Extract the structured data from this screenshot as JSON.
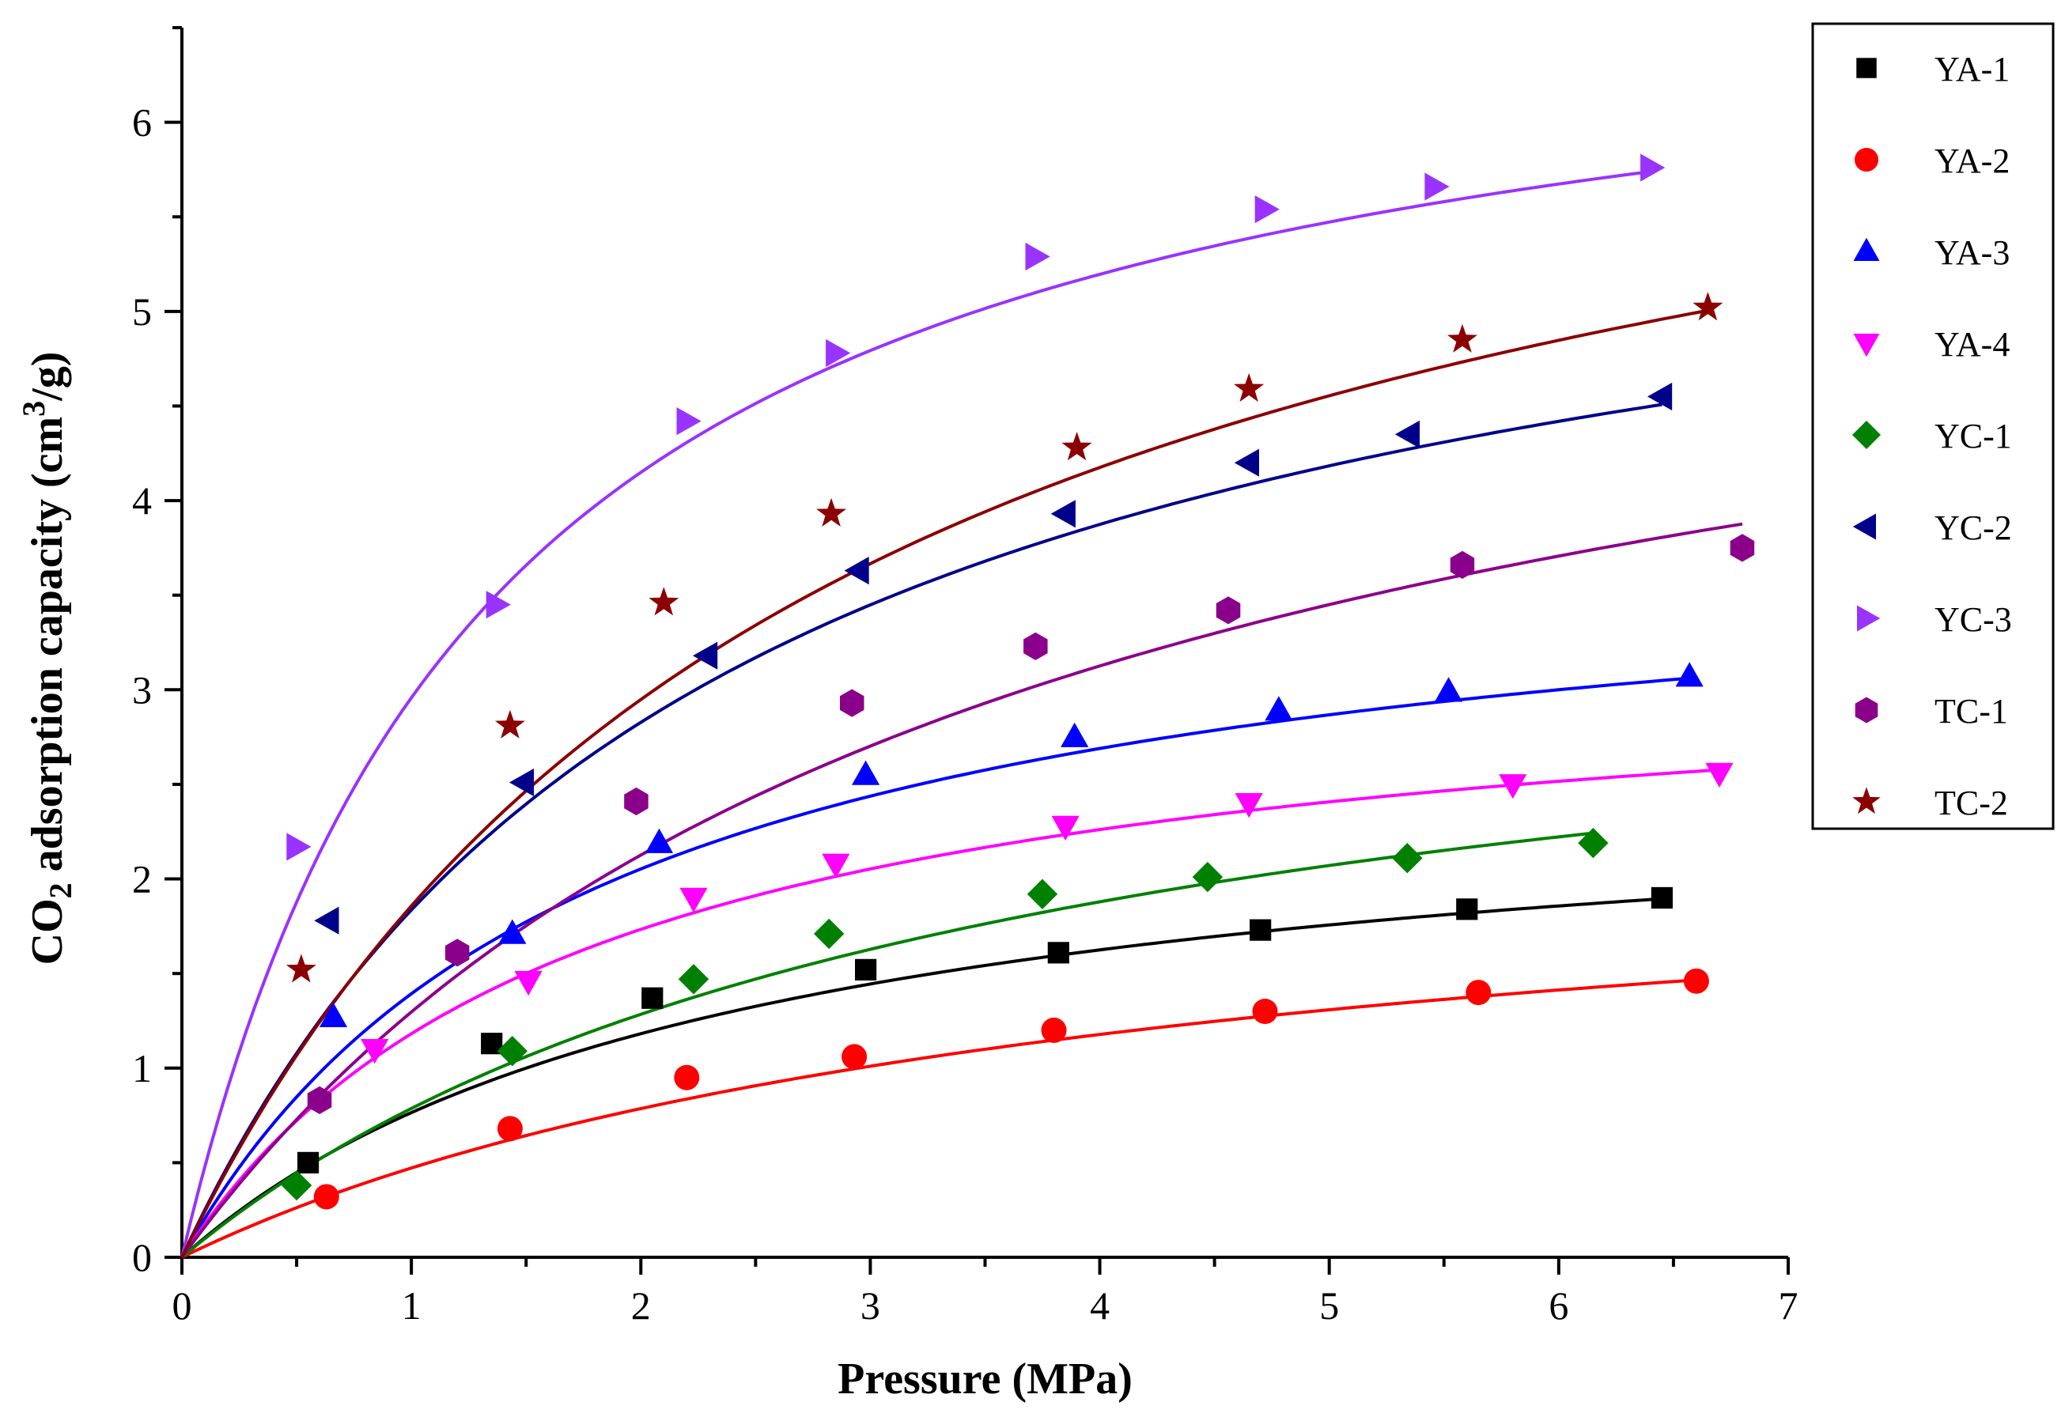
{
  "chart_data": {
    "type": "scatter",
    "title": "",
    "xlabel": "Pressure (MPa)",
    "ylabel": {
      "prefix": "CO",
      "sub": "2",
      "mid": " adsorption capacity (cm",
      "sup": "3",
      "suffix": "/g)"
    },
    "xlim": [
      0,
      7
    ],
    "ylim": [
      0,
      6.5
    ],
    "x_ticks": [
      0,
      1,
      2,
      3,
      4,
      5,
      6,
      7
    ],
    "y_ticks": [
      0,
      1,
      2,
      3,
      4,
      5,
      6
    ],
    "grid": false,
    "legend_position": "top-right, outside plot",
    "fit_model": "langmuir",
    "series": [
      {
        "name": "YA-1",
        "marker": "square",
        "color": "#000000",
        "fit": {
          "vl": 2.6,
          "pl": 2.4,
          "xmax": 6.45
        },
        "points": [
          [
            0.55,
            0.5
          ],
          [
            1.35,
            1.13
          ],
          [
            2.05,
            1.37
          ],
          [
            2.98,
            1.52
          ],
          [
            3.82,
            1.61
          ],
          [
            4.7,
            1.73
          ],
          [
            5.6,
            1.84
          ],
          [
            6.45,
            1.9
          ]
        ]
      },
      {
        "name": "YA-2",
        "marker": "circle",
        "color": "#ff0000",
        "fit": {
          "vl": 2.35,
          "pl": 3.98,
          "xmax": 6.6
        },
        "points": [
          [
            0.63,
            0.32
          ],
          [
            1.43,
            0.68
          ],
          [
            2.2,
            0.95
          ],
          [
            2.93,
            1.06
          ],
          [
            3.8,
            1.2
          ],
          [
            4.72,
            1.3
          ],
          [
            5.65,
            1.4
          ],
          [
            6.6,
            1.46
          ]
        ]
      },
      {
        "name": "YA-3",
        "marker": "triangle-up",
        "color": "#0000ff",
        "fit": {
          "vl": 3.9,
          "pl": 1.8,
          "xmax": 6.57
        },
        "points": [
          [
            0.66,
            1.27
          ],
          [
            1.44,
            1.71
          ],
          [
            2.08,
            2.19
          ],
          [
            2.98,
            2.55
          ],
          [
            3.89,
            2.75
          ],
          [
            4.78,
            2.89
          ],
          [
            5.52,
            2.99
          ],
          [
            6.57,
            3.07
          ]
        ]
      },
      {
        "name": "YA-4",
        "marker": "triangle-down",
        "color": "#ff00ff",
        "fit": {
          "vl": 3.25,
          "pl": 1.75,
          "xmax": 6.7
        },
        "points": [
          [
            0.84,
            1.1
          ],
          [
            1.51,
            1.46
          ],
          [
            2.23,
            1.9
          ],
          [
            2.85,
            2.08
          ],
          [
            3.85,
            2.28
          ],
          [
            4.65,
            2.4
          ],
          [
            5.8,
            2.5
          ],
          [
            6.7,
            2.56
          ]
        ]
      },
      {
        "name": "YC-1",
        "marker": "diamond",
        "color": "#008000",
        "fit": {
          "vl": 3.5,
          "pl": 3.45,
          "xmax": 6.15
        },
        "points": [
          [
            0.5,
            0.38
          ],
          [
            1.44,
            1.09
          ],
          [
            2.23,
            1.47
          ],
          [
            2.82,
            1.71
          ],
          [
            3.75,
            1.92
          ],
          [
            4.47,
            2.01
          ],
          [
            5.34,
            2.11
          ],
          [
            6.15,
            2.19
          ]
        ]
      },
      {
        "name": "YC-2",
        "marker": "triangle-left",
        "color": "#00008b",
        "fit": {
          "vl": 6.15,
          "pl": 2.35,
          "xmax": 6.45
        },
        "points": [
          [
            0.64,
            1.78
          ],
          [
            1.49,
            2.51
          ],
          [
            2.29,
            3.18
          ],
          [
            2.95,
            3.63
          ],
          [
            3.85,
            3.93
          ],
          [
            4.65,
            4.2
          ],
          [
            5.35,
            4.35
          ],
          [
            6.45,
            4.55
          ]
        ]
      },
      {
        "name": "YC-3",
        "marker": "triangle-right",
        "color": "#9933ff",
        "fit": {
          "vl": 6.95,
          "pl": 1.35,
          "xmax": 6.4
        },
        "points": [
          [
            0.5,
            2.17
          ],
          [
            1.37,
            3.45
          ],
          [
            2.2,
            4.42
          ],
          [
            2.85,
            4.78
          ],
          [
            3.72,
            5.29
          ],
          [
            4.72,
            5.54
          ],
          [
            5.46,
            5.66
          ],
          [
            6.4,
            5.76
          ]
        ]
      },
      {
        "name": "TC-1",
        "marker": "hexagon",
        "color": "#8b008b",
        "fit": {
          "vl": 5.9,
          "pl": 3.55,
          "xmax": 6.8
        },
        "points": [
          [
            0.6,
            0.83
          ],
          [
            1.2,
            1.61
          ],
          [
            1.98,
            2.41
          ],
          [
            2.92,
            2.93
          ],
          [
            3.72,
            3.23
          ],
          [
            4.56,
            3.42
          ],
          [
            5.58,
            3.66
          ],
          [
            6.8,
            3.75
          ]
        ]
      },
      {
        "name": "TC-2",
        "marker": "star",
        "color": "#8b0000",
        "fit": {
          "vl": 7.15,
          "pl": 2.85,
          "xmax": 6.65
        },
        "points": [
          [
            0.52,
            1.52
          ],
          [
            1.43,
            2.81
          ],
          [
            2.1,
            3.46
          ],
          [
            2.83,
            3.93
          ],
          [
            3.9,
            4.28
          ],
          [
            4.65,
            4.59
          ],
          [
            5.58,
            4.85
          ],
          [
            6.65,
            5.02
          ]
        ]
      }
    ]
  }
}
